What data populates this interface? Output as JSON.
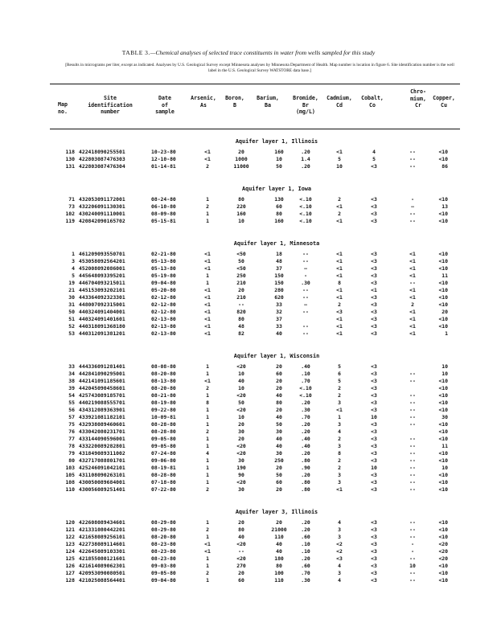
{
  "title": {
    "lead": "TABLE 3.",
    "text": "—Chemical analyses of selected trace constituents in water from wells sampled for this study"
  },
  "footnote": "[Results in micrograms per liter, except as indicated. Analyses by U.S. Geological Survey except Minnesota analyses by Minnesota Department of Health. Map number is location in figure 6. Site identification number is the well label in the U.S. Geological Survey WATSTORE data base.]",
  "columns": {
    "map": "Map\nno.",
    "site": "Site\nidentification\nnumber",
    "date": "Date\nof\nsample",
    "as": "Arsenic,\nAs",
    "b": "Boron,\nB",
    "ba": "Barium,\nBa",
    "br": "Bromide,\nBr\n(mg/L)",
    "cd": "Cadmium,\nCd",
    "co": "Cobalt,\nCo",
    "cr": "Chro-\nmium,\nCr",
    "cu": "Copper,\nCu"
  },
  "sections": [
    {
      "heading": "Aquifer layer 1, Illinois",
      "rows": [
        [
          "118",
          "422418090255501",
          "10-23-80",
          "<1",
          "20",
          "160",
          ".20",
          "<1",
          "4",
          "--",
          "<10"
        ],
        [
          "130",
          "422803087476303",
          "12-10-80",
          "<1",
          "1000",
          "10",
          "1.4",
          "5",
          "5",
          "--",
          "<10"
        ],
        [
          "131",
          "422803087476304",
          "01-14-81",
          "2",
          "11000",
          "50",
          ".20",
          "10",
          "<3",
          "--",
          "86"
        ]
      ]
    },
    {
      "heading": "Aquifer layer 1, Iowa",
      "rows": [
        [
          "71",
          "432053091172001",
          "08-24-80",
          "1",
          "80",
          "130",
          "<.10",
          "2",
          "<3",
          "-",
          "<10"
        ],
        [
          "73",
          "432206091130301",
          "06-10-80",
          "2",
          "220",
          "60",
          "<.10",
          "<1",
          "<3",
          "—",
          "13"
        ],
        [
          "102",
          "430240091110001",
          "08-09-80",
          "1",
          "160",
          "80",
          "<.10",
          "2",
          "<3",
          "--",
          "<10"
        ],
        [
          "119",
          "420842090165702",
          "05-15-81",
          "1",
          "10",
          "160",
          "<.10",
          "<1",
          "<3",
          "--",
          "<10"
        ]
      ]
    },
    {
      "heading": "Aquifer layer 1, Minnesota",
      "rows": [
        [
          "1",
          "461209093550701",
          "02-21-80",
          "<1",
          "<50",
          "18",
          "--",
          "<1",
          "<3",
          "<1",
          "<10"
        ],
        [
          "3",
          "453058092564201",
          "05-13-80",
          "<1",
          "50",
          "48",
          "--",
          "<1",
          "<3",
          "<1",
          "<10"
        ],
        [
          "4",
          "452008092086001",
          "05-13-80",
          "<1",
          "<50",
          "37",
          "—",
          "<1",
          "<3",
          "<1",
          "<10"
        ],
        [
          "5",
          "445648093395201",
          "05-19-80",
          "1",
          "250",
          "150",
          "-",
          "<1",
          "<3",
          "<1",
          "11"
        ],
        [
          "19",
          "446704093215011",
          "09-04-80",
          "1",
          "210",
          "150",
          ".30",
          "8",
          "<3",
          "--",
          "<10"
        ],
        [
          "21",
          "445153093202101",
          "05-20-80",
          "<1",
          "20",
          "280",
          "--",
          "<1",
          "<1",
          "<1",
          "<10"
        ],
        [
          "30",
          "443364092323301",
          "02-12-80",
          "<1",
          "210",
          "620",
          "--",
          "<1",
          "<3",
          "<1",
          "<10"
        ],
        [
          "31",
          "448007092315001",
          "02-12-80",
          "<1",
          "--",
          "33",
          "—",
          "2",
          "<3",
          "2",
          "<10"
        ],
        [
          "50",
          "440324091404001",
          "02-12-80",
          "<1",
          "820",
          "32",
          "--",
          "<3",
          "<3",
          "<1",
          "20"
        ],
        [
          "51",
          "440324091401601",
          "02-13-80",
          "<1",
          "80",
          "37",
          "",
          "<1",
          "<3",
          "<1",
          "<10"
        ],
        [
          "52",
          "440318091368180",
          "02-13-80",
          "<1",
          "48",
          "33",
          "--",
          "<1",
          "<3",
          "<1",
          "<10"
        ],
        [
          "53",
          "440312091381201",
          "02-13-80",
          "<1",
          "82",
          "40",
          "--",
          "<1",
          "<3",
          "<1",
          "1"
        ]
      ]
    },
    {
      "heading": "Aquifer layer 1, Wisconsin",
      "rows": [
        [
          "33",
          "444336091281401",
          "08-08-80",
          "1",
          "<20",
          "20",
          ".40",
          "5",
          "<3",
          "",
          "10"
        ],
        [
          "34",
          "442841090295001",
          "08-20-80",
          "1",
          "10",
          "60",
          ".10",
          "6",
          "<3",
          "--",
          "10"
        ],
        [
          "38",
          "442141091185601",
          "08-13-80",
          "<1",
          "40",
          "20",
          ".70",
          "5",
          "<3",
          "--",
          "<10"
        ],
        [
          "39",
          "442045090458601",
          "08-20-80",
          "2",
          "10",
          "20",
          "<.10",
          "2",
          "<3",
          "",
          "<10"
        ],
        [
          "54",
          "425743089185701",
          "08-21-80",
          "1",
          "<20",
          "40",
          "<.10",
          "2",
          "<3",
          "--",
          "<10"
        ],
        [
          "55",
          "440219088555701",
          "08-19-80",
          "8",
          "50",
          "80",
          ".20",
          "3",
          "<3",
          "--",
          "<10"
        ],
        [
          "56",
          "434312089363901",
          "09-22-80",
          "1",
          "<20",
          "20",
          ".30",
          "<1",
          "<3",
          "--",
          "<10"
        ],
        [
          "57",
          "433921081182101",
          "10-09-81",
          "1",
          "10",
          "40",
          ".70",
          "1",
          "10",
          "--",
          "30"
        ],
        [
          "75",
          "432938089460601",
          "08-28-80",
          "1",
          "20",
          "50",
          ".20",
          "3",
          "<3",
          "--",
          "<10"
        ],
        [
          "76",
          "433042080231701",
          "08-28-80",
          "2",
          "30",
          "30",
          ".20",
          "4",
          "<3",
          "",
          "<10"
        ],
        [
          "77",
          "433144090596001",
          "09-05-80",
          "1",
          "20",
          "40",
          ".40",
          "2",
          "<3",
          "--",
          "<10"
        ],
        [
          "78",
          "433220089282801",
          "09-05-80",
          "1",
          "<20",
          "40",
          ".40",
          "3",
          "<3",
          "--",
          "11"
        ],
        [
          "79",
          "431849089311002",
          "07-24-80",
          "4",
          "<20",
          "30",
          ".20",
          "8",
          "<3",
          "--",
          "<10"
        ],
        [
          "80",
          "432717088801701",
          "09-06-80",
          "1",
          "30",
          "250",
          ".80",
          "2",
          "<3",
          "--",
          "<10"
        ],
        [
          "103",
          "425246091042101",
          "08-19-81",
          "1",
          "190",
          "20",
          ".90",
          "2",
          "10",
          "--",
          "10"
        ],
        [
          "105",
          "431108090263101",
          "08-28-80",
          "1",
          "90",
          "50",
          ".20",
          "3",
          "<3",
          "--",
          "<10"
        ],
        [
          "108",
          "430050089684001",
          "07-18-80",
          "1",
          "<20",
          "60",
          ".80",
          "3",
          "<3",
          "--",
          "<10"
        ],
        [
          "110",
          "430056089251401",
          "07-22-80",
          "2",
          "30",
          "20",
          ".80",
          "<1",
          "<3",
          "--",
          "<10"
        ]
      ]
    },
    {
      "heading": "Aquifer layer 3, Illinois",
      "rows": [
        [
          "120",
          "422608089434601",
          "08-29-80",
          "1",
          "20",
          "20",
          ".20",
          "4",
          "<3",
          "--",
          "<10"
        ],
        [
          "121",
          "421331080442201",
          "08-29-80",
          "2",
          "80",
          "21000",
          ".20",
          "3",
          "<3",
          "--",
          "<10"
        ],
        [
          "122",
          "421658089256101",
          "08-20-80",
          "1",
          "40",
          "110",
          ".60",
          "3",
          "<3",
          "--",
          "<10"
        ],
        [
          "123",
          "422738089114601",
          "08-23-80",
          "<1",
          "<20",
          "40",
          ".10",
          "<2",
          "<3",
          "-",
          "<20"
        ],
        [
          "124",
          "422645089103301",
          "08-23-80",
          "<1",
          "--",
          "40",
          ".10",
          "<2",
          "<3",
          "-",
          "<20"
        ],
        [
          "125",
          "421855080121601",
          "08-23-80",
          "1",
          "<20",
          "180",
          ".20",
          "<3",
          "<3",
          "--",
          "<20"
        ],
        [
          "126",
          "421614089062301",
          "09-03-80",
          "1",
          "270",
          "80",
          ".60",
          "4",
          "<3",
          "10",
          "<10"
        ],
        [
          "127",
          "420953090080501",
          "09-05-80",
          "2",
          "20",
          "100",
          ".70",
          "3",
          "<3",
          "--",
          "<10"
        ],
        [
          "128",
          "421025088564401",
          "09-04-80",
          "1",
          "60",
          "110",
          ".30",
          "4",
          "<3",
          "--",
          "<10"
        ]
      ]
    }
  ]
}
